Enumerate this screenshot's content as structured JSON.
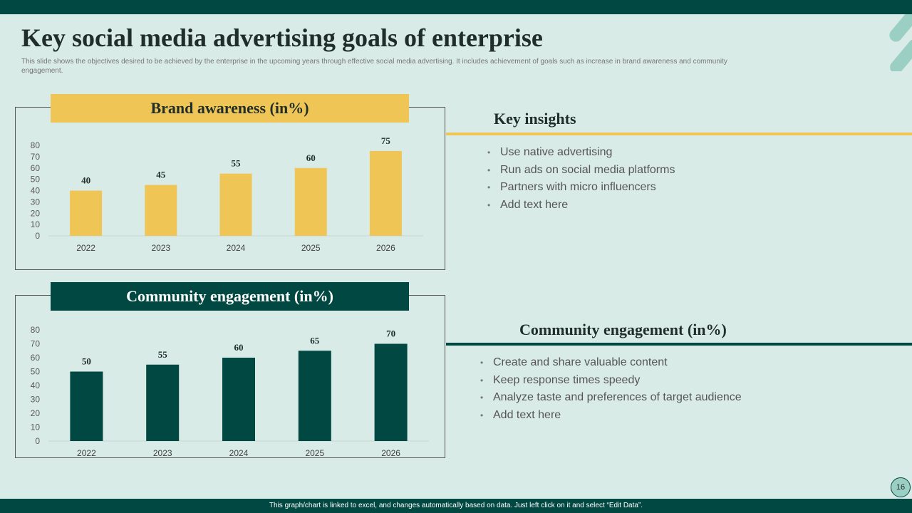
{
  "slide": {
    "title": "Key social media advertising goals of  enterprise",
    "subtitle": "This slide shows the objectives desired to be achieved by the enterprise in the upcoming years through effective social media advertising. It includes achievement of goals such as increase in brand awareness and community engagement.",
    "footer": "This graph/chart is linked to excel, and changes automatically based on data. Just left click on it and select “Edit Data”.",
    "page_number": "16"
  },
  "colors": {
    "dark_teal": "#014843",
    "gold": "#efc556",
    "background": "#d9ebe7",
    "accent_light": "#9ccfc4"
  },
  "chart_data": [
    {
      "type": "bar",
      "title": "Brand awareness (in%)",
      "categories": [
        "2022",
        "2023",
        "2024",
        "2025",
        "2026"
      ],
      "values": [
        40,
        45,
        55,
        60,
        75
      ],
      "ylim": [
        0,
        80
      ],
      "yticks": [
        0,
        10,
        20,
        30,
        40,
        50,
        60,
        70,
        80
      ],
      "xlabel": "",
      "ylabel": "",
      "color": "#efc556"
    },
    {
      "type": "bar",
      "title": "Community engagement (in%)",
      "categories": [
        "2022",
        "2023",
        "2024",
        "2025",
        "2026"
      ],
      "values": [
        50,
        55,
        60,
        65,
        70
      ],
      "ylim": [
        0,
        80
      ],
      "yticks": [
        0,
        10,
        20,
        30,
        40,
        50,
        60,
        70,
        80
      ],
      "xlabel": "",
      "ylabel": "",
      "color": "#014843"
    }
  ],
  "insights": {
    "key": {
      "heading": "Key insights",
      "items": [
        "Use native advertising",
        "Run ads on social media platforms",
        "Partners with micro influencers",
        "Add text here"
      ]
    },
    "community": {
      "heading": "Community engagement (in%)",
      "items": [
        "Create and share valuable content",
        "Keep response times speedy",
        "Analyze taste and preferences of target audience",
        "Add text here"
      ]
    }
  }
}
